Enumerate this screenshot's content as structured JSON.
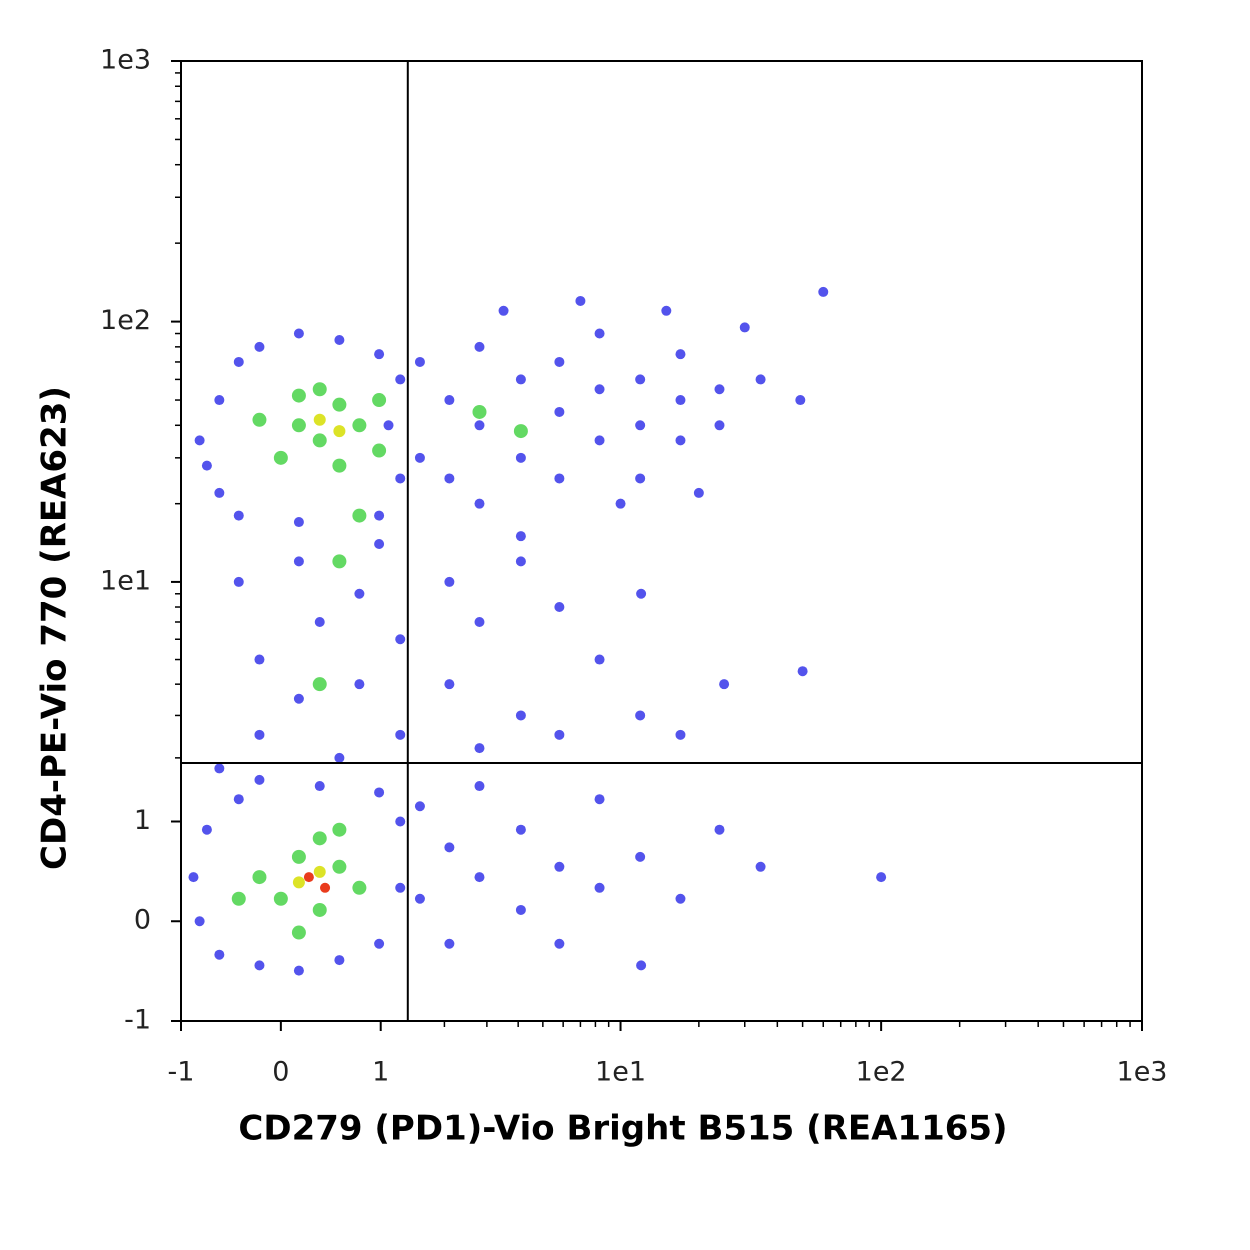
{
  "chart_data": {
    "type": "scatter",
    "xlabel": "CD279 (PD1)-Vio Bright B515 (REA1165)",
    "ylabel": "CD4-PE-Vio 770 (REA623)",
    "xscale": "asinh",
    "yscale": "asinh",
    "minor_ticks": true,
    "xlim": [
      -1,
      1000
    ],
    "ylim": [
      -1,
      1000
    ],
    "xticks": [
      -1,
      0,
      1,
      {
        "value": 10,
        "label": "1e1"
      },
      {
        "value": 100,
        "label": "1e2"
      },
      {
        "value": 1000,
        "label": "1e3"
      }
    ],
    "yticks": [
      -1,
      0,
      1,
      {
        "value": 10,
        "label": "1e1"
      },
      {
        "value": 100,
        "label": "1e2"
      },
      {
        "value": 1000,
        "label": "1e3"
      }
    ],
    "quadrant": {
      "x": 1.37,
      "y": 1.9
    },
    "series": [
      {
        "color": "#1a1ae6",
        "x": [
          -0.78,
          -0.57,
          -0.57,
          -0.38,
          -0.19,
          0.16,
          0.54,
          0.98,
          1.26,
          1.26,
          0.98,
          0.16,
          -0.38,
          -0.7,
          1.1,
          1.56,
          1.56,
          2.1,
          2.1,
          2.8,
          2.8,
          2.8,
          4.1,
          4.1,
          4.1,
          5.8,
          5.8,
          5.8,
          8.3,
          8.3,
          8.3,
          11.9,
          11.9,
          11.9,
          17,
          17,
          17,
          24,
          24,
          34.5,
          49,
          3.5,
          7,
          15,
          30,
          60,
          10,
          20,
          -0.38,
          -0.19,
          -0.19,
          0.16,
          0.16,
          0.35,
          0.54,
          0.75,
          0.75,
          0.98,
          1.26,
          1.26,
          -0.57,
          2.1,
          2.1,
          2.8,
          2.8,
          4.1,
          4.1,
          5.8,
          5.8,
          8.3,
          11.9,
          17,
          25,
          50,
          12,
          -0.85,
          -0.78,
          -0.7,
          -0.57,
          -0.38,
          -0.19,
          0.16,
          0.54,
          0.98,
          1.26,
          1.26,
          0.98,
          0.35,
          -0.19,
          1.56,
          1.56,
          2.1,
          2.1,
          2.8,
          2.8,
          4.1,
          4.1,
          5.8,
          5.8,
          8.3,
          8.3,
          11.9,
          17,
          24,
          34.5,
          12,
          100
        ],
        "y": [
          35,
          50,
          22,
          70,
          80,
          90,
          85,
          75,
          60,
          25,
          18,
          17,
          18,
          28,
          40,
          70,
          30,
          50,
          25,
          80,
          40,
          20,
          60,
          30,
          15,
          70,
          45,
          25,
          55,
          35,
          90,
          60,
          40,
          25,
          50,
          75,
          35,
          55,
          40,
          60,
          50,
          110,
          120,
          110,
          95,
          130,
          20,
          22,
          10,
          5,
          2.5,
          12,
          3.5,
          7,
          2,
          9,
          4,
          14,
          6,
          2.5,
          1.8,
          10,
          4,
          7,
          2.2,
          12,
          3,
          8,
          2.5,
          5,
          3,
          2.5,
          4,
          4.5,
          9,
          0.4,
          0.0,
          0.9,
          -0.3,
          1.3,
          -0.4,
          -0.45,
          -0.35,
          -0.2,
          0.3,
          1.0,
          1.4,
          1.5,
          1.6,
          0.2,
          1.2,
          -0.2,
          0.7,
          0.4,
          1.5,
          0.1,
          0.9,
          0.5,
          -0.2,
          0.3,
          1.3,
          0.6,
          0.2,
          0.9,
          0.5,
          -0.4,
          0.4
        ]
      },
      {
        "color": "#3ccf3c",
        "x": [
          0.16,
          0.35,
          0.54,
          0.75,
          0.35,
          0.0,
          0.98,
          0.54,
          0.16,
          -0.19,
          0.98,
          0.0,
          0.16,
          0.35,
          0.54,
          -0.19,
          0.75,
          0.16,
          0.54,
          -0.38,
          0.35,
          0.54,
          0.75,
          0.35,
          2.8,
          4.1
        ],
        "y": [
          40,
          35,
          48,
          40,
          55,
          30,
          32,
          28,
          52,
          42,
          50,
          0.2,
          0.6,
          0.1,
          0.5,
          0.4,
          0.3,
          -0.1,
          0.9,
          0.2,
          0.8,
          12,
          18,
          4,
          45,
          38
        ]
      },
      {
        "color": "#d8e010",
        "x": [
          0.35,
          0.54,
          0.16,
          0.35
        ],
        "y": [
          42,
          38,
          0.35,
          0.45
        ]
      },
      {
        "color": "#e83010",
        "x": [
          0.25,
          0.4
        ],
        "y": [
          0.4,
          0.3
        ]
      }
    ]
  }
}
